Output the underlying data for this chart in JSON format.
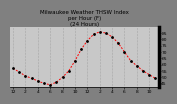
{
  "title": "Milwaukee Weather THSW Index\nper Hour (F)\n(24 Hours)",
  "hours": [
    0,
    1,
    2,
    3,
    4,
    5,
    6,
    7,
    8,
    9,
    10,
    11,
    12,
    13,
    14,
    15,
    16,
    17,
    18,
    19,
    20,
    21,
    22,
    23
  ],
  "values": [
    57,
    54,
    51,
    49,
    47,
    45,
    44,
    46,
    50,
    55,
    63,
    72,
    79,
    84,
    86,
    85,
    82,
    77,
    70,
    63,
    59,
    55,
    52,
    49
  ],
  "line_color": "#ff0000",
  "marker_color": "#000000",
  "plot_bg_color": "#c8c8c8",
  "fig_bg_color": "#808080",
  "grid_color": "#888888",
  "title_color": "#000000",
  "ylim": [
    42,
    90
  ],
  "yticks": [
    45,
    50,
    55,
    60,
    65,
    70,
    75,
    80,
    85
  ],
  "title_fontsize": 4.0,
  "tick_fontsize": 3.2,
  "right_bar_color": "#000000"
}
